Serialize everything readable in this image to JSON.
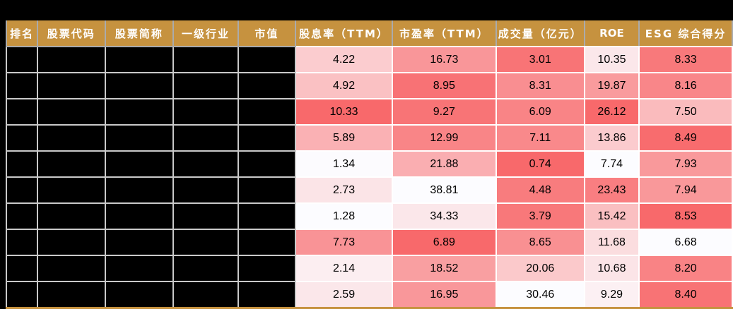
{
  "page": {
    "background_color": "#000000"
  },
  "table": {
    "header_bg": "#C6923F",
    "header_text_color": "#FFFFFF",
    "bottom_border_color": "#C6923F",
    "grid_color_left_section": "#C9C9C9",
    "grid_color_right_section": "#FFFFFF",
    "redacted_cell_color": "#000000",
    "redacted_column_count": 5,
    "columns": [
      {
        "id": "rank",
        "label": "排名"
      },
      {
        "id": "stock-code",
        "label": "股票代码"
      },
      {
        "id": "stock-name",
        "label": "股票简称"
      },
      {
        "id": "industry",
        "label": "一级行业"
      },
      {
        "id": "market-cap",
        "label": "市值"
      },
      {
        "id": "dividend-yield-ttm",
        "label": "股息率（TTM）"
      },
      {
        "id": "pe-ttm",
        "label": "市盈率（TTM）"
      },
      {
        "id": "turnover",
        "label": "成交量（亿元）"
      },
      {
        "id": "roe",
        "label": "ROE"
      },
      {
        "id": "esg-score",
        "label": "ESG 综合得分"
      }
    ],
    "rows": [
      {
        "values": [
          "4.22",
          "16.73",
          "3.01",
          "10.35",
          "8.33"
        ],
        "colors": [
          "#FBCCCF",
          "#F99699",
          "#F87476",
          "#FBE7EA",
          "#F8797B"
        ]
      },
      {
        "values": [
          "4.92",
          "8.95",
          "8.31",
          "19.87",
          "8.16"
        ],
        "colors": [
          "#FAC1C3",
          "#F87275",
          "#F98E91",
          "#F99B9D",
          "#F98689"
        ]
      },
      {
        "values": [
          "10.33",
          "9.27",
          "6.09",
          "26.12",
          "7.50"
        ],
        "colors": [
          "#F8696B",
          "#F87476",
          "#F98486",
          "#F8696B",
          "#FABBBD"
        ]
      },
      {
        "values": [
          "5.89",
          "12.99",
          "7.11",
          "13.86",
          "8.49"
        ],
        "colors": [
          "#FAB1B4",
          "#F98587",
          "#F9898B",
          "#FBCBCE",
          "#F86C6E"
        ]
      },
      {
        "values": [
          "1.34",
          "21.88",
          "0.74",
          "7.74",
          "7.93"
        ],
        "colors": [
          "#FCFBFE",
          "#FAAEB1",
          "#F8696B",
          "#FCFCFF",
          "#F9999B"
        ]
      },
      {
        "values": [
          "2.73",
          "38.81",
          "4.48",
          "23.43",
          "7.94"
        ],
        "colors": [
          "#FBE4E7",
          "#FCFCFF",
          "#F87C7E",
          "#F97E81",
          "#F9989A"
        ]
      },
      {
        "values": [
          "1.28",
          "34.33",
          "3.79",
          "15.42",
          "8.53"
        ],
        "colors": [
          "#FCFCFF",
          "#FBE7EA",
          "#F8787A",
          "#FABFC1",
          "#F8696B"
        ]
      },
      {
        "values": [
          "7.73",
          "6.89",
          "8.65",
          "11.68",
          "6.68"
        ],
        "colors": [
          "#F99396",
          "#F8696B",
          "#F99092",
          "#FBDDDF",
          "#FCFCFF"
        ]
      },
      {
        "values": [
          "2.14",
          "18.52",
          "20.06",
          "10.68",
          "8.20"
        ],
        "colors": [
          "#FCEEF1",
          "#F99FA1",
          "#FBC9CB",
          "#FBE4E7",
          "#F98385"
        ]
      },
      {
        "values": [
          "2.59",
          "16.95",
          "30.46",
          "9.29",
          "8.40"
        ],
        "colors": [
          "#FBE7EA",
          "#F9979A",
          "#FCFCFF",
          "#FCF0F3",
          "#F87375"
        ]
      }
    ]
  },
  "chart_data": {
    "type": "table",
    "title": "",
    "columns": [
      "排名",
      "股票代码",
      "股票简称",
      "一级行业",
      "市值",
      "股息率（TTM）",
      "市盈率（TTM）",
      "成交量（亿元）",
      "ROE",
      "ESG 综合得分"
    ],
    "redacted_columns": [
      "排名",
      "股票代码",
      "股票简称",
      "一级行业",
      "市值"
    ],
    "rows": [
      [
        null,
        null,
        null,
        null,
        null,
        4.22,
        16.73,
        3.01,
        10.35,
        8.33
      ],
      [
        null,
        null,
        null,
        null,
        null,
        4.92,
        8.95,
        8.31,
        19.87,
        8.16
      ],
      [
        null,
        null,
        null,
        null,
        null,
        10.33,
        9.27,
        6.09,
        26.12,
        7.5
      ],
      [
        null,
        null,
        null,
        null,
        null,
        5.89,
        12.99,
        7.11,
        13.86,
        8.49
      ],
      [
        null,
        null,
        null,
        null,
        null,
        1.34,
        21.88,
        0.74,
        7.74,
        7.93
      ],
      [
        null,
        null,
        null,
        null,
        null,
        2.73,
        38.81,
        4.48,
        23.43,
        7.94
      ],
      [
        null,
        null,
        null,
        null,
        null,
        1.28,
        34.33,
        3.79,
        15.42,
        8.53
      ],
      [
        null,
        null,
        null,
        null,
        null,
        7.73,
        6.89,
        8.65,
        11.68,
        6.68
      ],
      [
        null,
        null,
        null,
        null,
        null,
        2.14,
        18.52,
        20.06,
        10.68,
        8.2
      ],
      [
        null,
        null,
        null,
        null,
        null,
        2.59,
        16.95,
        30.46,
        9.29,
        8.4
      ]
    ],
    "heatmap": {
      "low_color": "#FCFCFF",
      "high_color": "#F8696B",
      "column_direction": {
        "股息率（TTM）": "higher_is_redder",
        "市盈率（TTM）": "lower_is_redder",
        "成交量（亿元）": "lower_is_redder",
        "ROE": "higher_is_redder",
        "ESG 综合得分": "higher_is_redder"
      }
    }
  }
}
